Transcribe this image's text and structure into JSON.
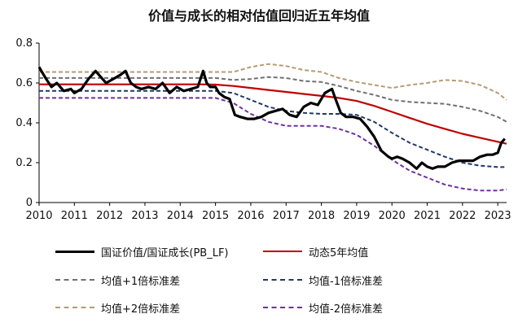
{
  "title": "价值与成长的相对估值回归近五年均值",
  "chart_data": {
    "type": "line",
    "title": "价值与成长的相对估值回归近五年均值",
    "xlabel": "",
    "ylabel": "",
    "xlim": [
      2010,
      2023.25
    ],
    "ylim": [
      0,
      0.8
    ],
    "x_ticks": [
      "2010",
      "2011",
      "2012",
      "2013",
      "2014",
      "2015",
      "2016",
      "2017",
      "2018",
      "2019",
      "2020",
      "2021",
      "2022",
      "2023"
    ],
    "y_ticks": [
      "0",
      "0.2",
      "0.4",
      "0.6",
      "0.8"
    ],
    "grid": false,
    "legend_position": "bottom",
    "series": [
      {
        "name": "国证价值/国证成长(PB_LF)",
        "color": "#000000",
        "style": "solid",
        "width": 3.2,
        "x": [
          2010.0,
          2010.1,
          2010.2,
          2010.35,
          2010.5,
          2010.7,
          2010.9,
          2011.0,
          2011.2,
          2011.4,
          2011.6,
          2011.75,
          2011.9,
          2012.1,
          2012.3,
          2012.45,
          2012.6,
          2012.75,
          2012.9,
          2013.1,
          2013.3,
          2013.5,
          2013.7,
          2013.9,
          2014.1,
          2014.3,
          2014.5,
          2014.65,
          2014.75,
          2014.85,
          2015.0,
          2015.1,
          2015.25,
          2015.4,
          2015.55,
          2015.7,
          2015.9,
          2016.1,
          2016.3,
          2016.5,
          2016.7,
          2016.9,
          2017.1,
          2017.3,
          2017.5,
          2017.7,
          2017.9,
          2018.1,
          2018.3,
          2018.4,
          2018.55,
          2018.7,
          2018.9,
          2019.1,
          2019.3,
          2019.5,
          2019.7,
          2019.9,
          2020.0,
          2020.15,
          2020.3,
          2020.5,
          2020.7,
          2020.85,
          2021.0,
          2021.15,
          2021.3,
          2021.5,
          2021.7,
          2021.9,
          2022.1,
          2022.3,
          2022.5,
          2022.7,
          2022.85,
          2023.0,
          2023.1,
          2023.2
        ],
        "values": [
          0.68,
          0.65,
          0.62,
          0.58,
          0.6,
          0.56,
          0.57,
          0.55,
          0.57,
          0.62,
          0.66,
          0.63,
          0.6,
          0.62,
          0.64,
          0.66,
          0.6,
          0.58,
          0.57,
          0.58,
          0.57,
          0.6,
          0.55,
          0.58,
          0.56,
          0.57,
          0.58,
          0.66,
          0.6,
          0.58,
          0.58,
          0.55,
          0.53,
          0.52,
          0.44,
          0.43,
          0.42,
          0.42,
          0.43,
          0.45,
          0.46,
          0.47,
          0.44,
          0.43,
          0.48,
          0.5,
          0.49,
          0.55,
          0.57,
          0.52,
          0.45,
          0.43,
          0.43,
          0.42,
          0.38,
          0.33,
          0.26,
          0.23,
          0.22,
          0.23,
          0.22,
          0.2,
          0.17,
          0.2,
          0.18,
          0.17,
          0.18,
          0.18,
          0.2,
          0.21,
          0.21,
          0.21,
          0.23,
          0.24,
          0.24,
          0.25,
          0.3,
          0.32
        ]
      },
      {
        "name": "动态5年均值",
        "color": "#c00000",
        "style": "solid",
        "width": 2.2,
        "x": [
          2010.0,
          2014.6,
          2015.0,
          2015.5,
          2016.0,
          2016.5,
          2017.0,
          2017.5,
          2018.0,
          2018.5,
          2019.0,
          2019.5,
          2020.0,
          2020.5,
          2021.0,
          2021.5,
          2022.0,
          2022.5,
          2023.0,
          2023.25
        ],
        "values": [
          0.593,
          0.593,
          0.592,
          0.585,
          0.575,
          0.565,
          0.555,
          0.545,
          0.535,
          0.525,
          0.51,
          0.485,
          0.455,
          0.425,
          0.395,
          0.37,
          0.345,
          0.325,
          0.305,
          0.295
        ]
      },
      {
        "name": "均值+1倍标准差",
        "color": "#707070",
        "style": "dashed",
        "width": 2.0,
        "x": [
          2010.0,
          2014.6,
          2015.0,
          2015.5,
          2016.0,
          2016.5,
          2017.0,
          2017.5,
          2018.0,
          2018.5,
          2019.0,
          2019.5,
          2020.0,
          2020.5,
          2021.0,
          2021.5,
          2022.0,
          2022.5,
          2023.0,
          2023.25
        ],
        "values": [
          0.625,
          0.625,
          0.625,
          0.615,
          0.62,
          0.63,
          0.625,
          0.61,
          0.605,
          0.585,
          0.56,
          0.54,
          0.515,
          0.505,
          0.5,
          0.495,
          0.48,
          0.46,
          0.43,
          0.405
        ]
      },
      {
        "name": "均值-1倍标准差",
        "color": "#1f3864",
        "style": "dashed",
        "width": 2.0,
        "x": [
          2010.0,
          2014.6,
          2015.0,
          2015.5,
          2016.0,
          2016.5,
          2017.0,
          2017.5,
          2018.0,
          2018.5,
          2019.0,
          2019.5,
          2020.0,
          2020.5,
          2021.0,
          2021.5,
          2022.0,
          2022.5,
          2023.0,
          2023.25
        ],
        "values": [
          0.56,
          0.56,
          0.56,
          0.55,
          0.515,
          0.48,
          0.46,
          0.45,
          0.445,
          0.445,
          0.44,
          0.405,
          0.35,
          0.3,
          0.265,
          0.23,
          0.2,
          0.185,
          0.178,
          0.178
        ]
      },
      {
        "name": "均值+2倍标准差",
        "color": "#b69a74",
        "style": "dashed",
        "width": 2.0,
        "x": [
          2010.0,
          2014.6,
          2015.0,
          2015.5,
          2016.0,
          2016.5,
          2017.0,
          2017.5,
          2018.0,
          2018.5,
          2019.0,
          2019.5,
          2020.0,
          2020.5,
          2021.0,
          2021.5,
          2022.0,
          2022.5,
          2023.0,
          2023.25
        ],
        "values": [
          0.655,
          0.655,
          0.655,
          0.655,
          0.68,
          0.695,
          0.685,
          0.665,
          0.655,
          0.625,
          0.605,
          0.59,
          0.575,
          0.59,
          0.6,
          0.615,
          0.61,
          0.59,
          0.55,
          0.515
        ]
      },
      {
        "name": "均值-2倍标准差",
        "color": "#7030a0",
        "style": "dashed",
        "width": 2.0,
        "x": [
          2010.0,
          2014.6,
          2015.0,
          2015.5,
          2016.0,
          2016.5,
          2017.0,
          2017.5,
          2018.0,
          2018.5,
          2019.0,
          2019.5,
          2020.0,
          2020.5,
          2021.0,
          2021.5,
          2022.0,
          2022.5,
          2023.0,
          2023.25
        ],
        "values": [
          0.525,
          0.525,
          0.525,
          0.5,
          0.445,
          0.405,
          0.385,
          0.385,
          0.385,
          0.37,
          0.34,
          0.285,
          0.215,
          0.16,
          0.125,
          0.09,
          0.07,
          0.06,
          0.06,
          0.066
        ]
      }
    ]
  }
}
